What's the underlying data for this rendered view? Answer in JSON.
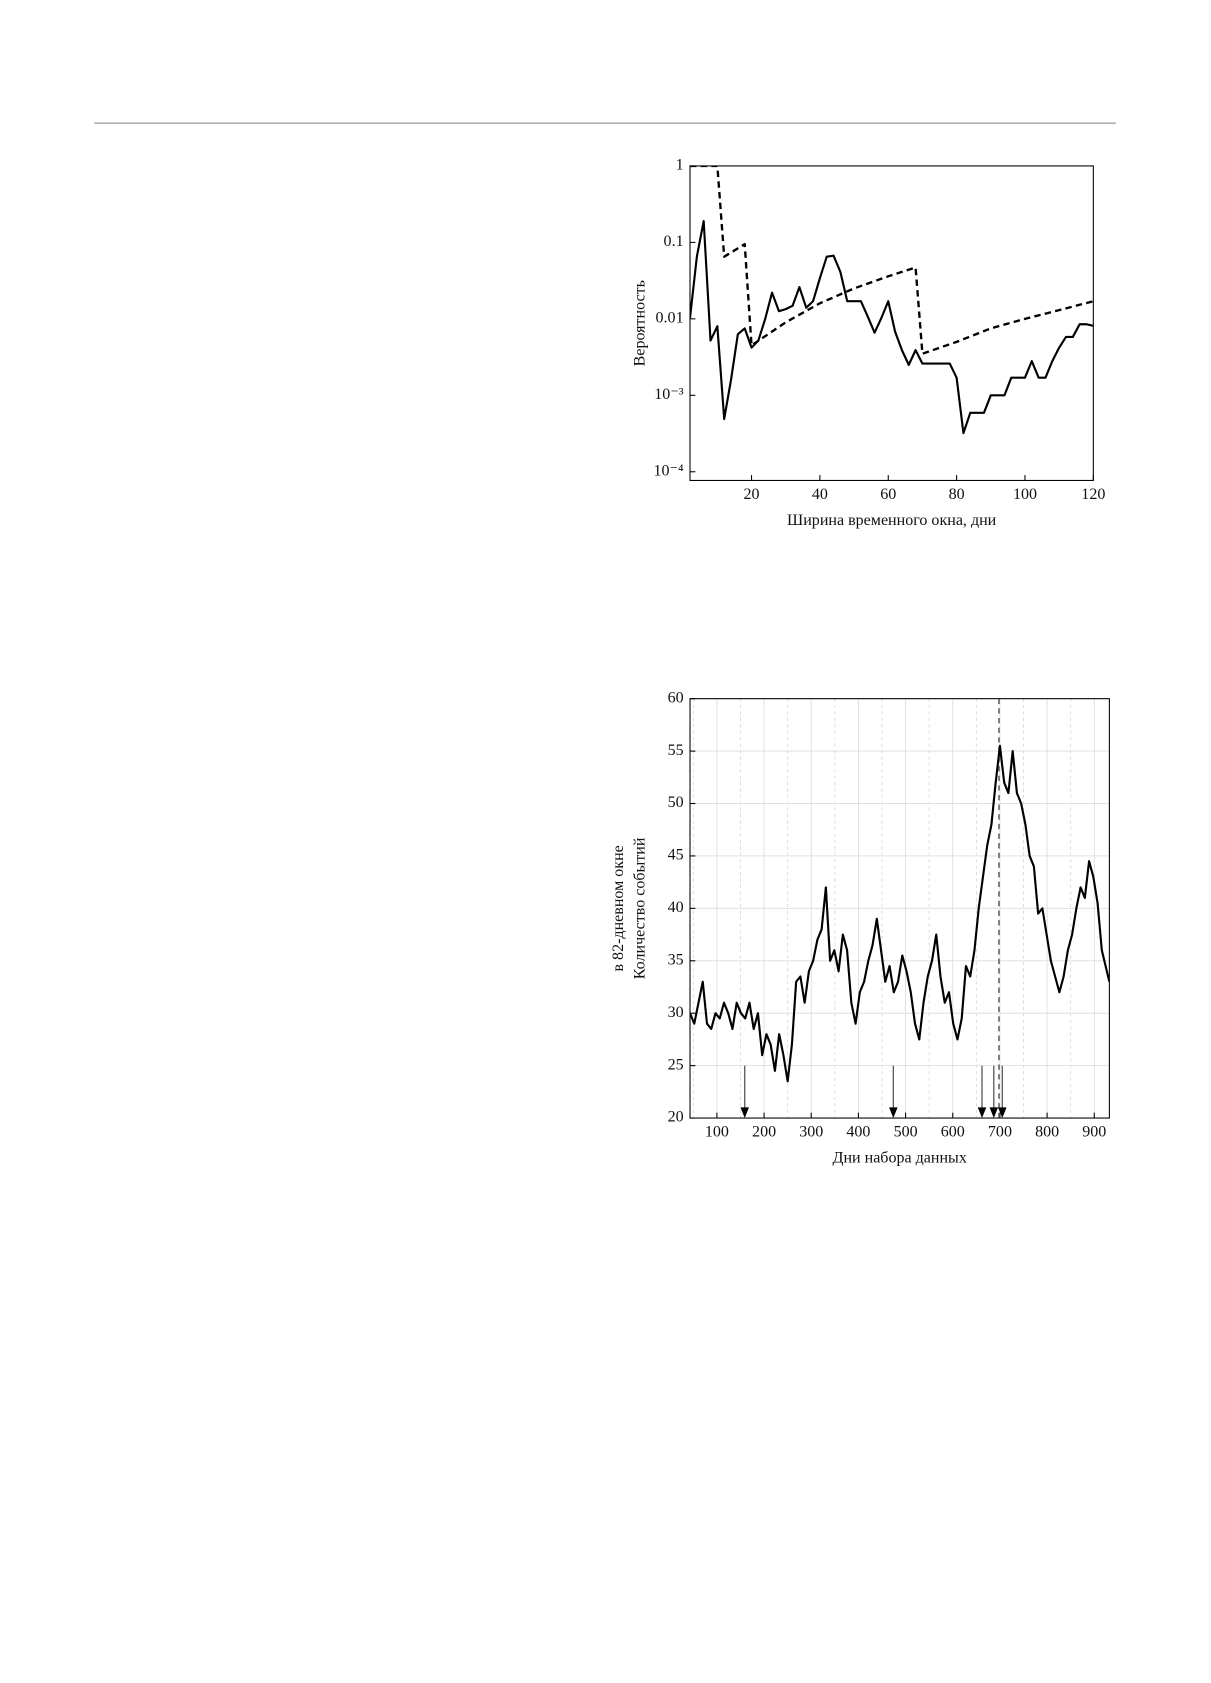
{
  "chart_data": [
    {
      "type": "line",
      "ylabel": "Вероятность",
      "xlabel": "Ширина временного окна, дни",
      "xlim": [
        2,
        120
      ],
      "ylim": [
        7.7e-05,
        1
      ],
      "ylog": true,
      "xticks": [
        20,
        40,
        60,
        80,
        100,
        120
      ],
      "yticks": [
        1,
        0.1,
        0.01,
        {
          "value": 0.001,
          "label": "10⁻³"
        },
        {
          "value": 0.0001,
          "label": "10⁻⁴"
        }
      ],
      "series": [
        {
          "color": "#000000",
          "style": "solid",
          "x": [
            2,
            4,
            6,
            8,
            10,
            12,
            14,
            16,
            18,
            20,
            22,
            24,
            26,
            28,
            30,
            32,
            34,
            36,
            38,
            40,
            42,
            44,
            46,
            48,
            50,
            52,
            54,
            56,
            58,
            60,
            62,
            64,
            66,
            68,
            70,
            72,
            78,
            80,
            82,
            84,
            86,
            88,
            90,
            92,
            94,
            96,
            98,
            100,
            102,
            104,
            106,
            108,
            110,
            112,
            114,
            116,
            118,
            120
          ],
          "values": [
            0.0103,
            0.065,
            0.19,
            0.0052,
            0.008,
            0.00049,
            0.0016,
            0.0063,
            0.0075,
            0.0042,
            0.0052,
            0.01,
            0.022,
            0.0126,
            0.0134,
            0.0148,
            0.026,
            0.014,
            0.017,
            0.034,
            0.065,
            0.067,
            0.041,
            0.017,
            0.017,
            0.017,
            0.0107,
            0.0066,
            0.0103,
            0.017,
            0.0068,
            0.0039,
            0.0025,
            0.0039,
            0.0026,
            0.0026,
            0.0026,
            0.0017,
            0.00032,
            0.00059,
            0.00059,
            0.00059,
            0.001,
            0.001,
            0.001,
            0.0017,
            0.0017,
            0.0017,
            0.0028,
            0.0017,
            0.0017,
            0.0028,
            0.0042,
            0.0058,
            0.0058,
            0.0085,
            0.0085,
            0.0081
          ]
        },
        {
          "color": "#000000",
          "style": "dashed",
          "x": [
            2,
            10,
            12,
            18,
            20,
            30,
            40,
            50,
            60,
            68,
            70,
            80,
            90,
            100,
            110,
            120
          ],
          "values": [
            1,
            1,
            0.065,
            0.095,
            0.0045,
            0.009,
            0.016,
            0.025,
            0.036,
            0.047,
            0.0035,
            0.005,
            0.0075,
            0.01,
            0.013,
            0.017
          ]
        }
      ]
    },
    {
      "type": "line",
      "ylabel": [
        "Количество событий",
        "в 82-дневном окне"
      ],
      "xlabel": "Дни набора данных",
      "xlim": [
        43,
        932
      ],
      "ylim": [
        20,
        60
      ],
      "xticks": [
        100,
        200,
        300,
        400,
        500,
        600,
        700,
        800,
        900
      ],
      "yticks": [
        20,
        25,
        30,
        35,
        40,
        45,
        50,
        55,
        60
      ],
      "xminorticks": [
        50,
        150,
        250,
        350,
        450,
        550,
        650,
        750,
        850
      ],
      "grid": true,
      "vline": {
        "x": 698,
        "color": "#666666"
      },
      "arrows": {
        "x": [
          159,
          474,
          662,
          687,
          705
        ],
        "from": 25,
        "to": 20
      },
      "series": [
        {
          "color": "#000000",
          "style": "solid",
          "x": [
            43,
            52,
            61,
            70,
            79,
            88,
            97,
            106,
            115,
            124,
            133,
            142,
            151,
            160,
            169,
            178,
            187,
            196,
            205,
            214,
            223,
            232,
            241,
            250,
            259,
            268,
            277,
            286,
            295,
            304,
            313,
            322,
            331,
            340,
            349,
            358,
            367,
            376,
            385,
            394,
            403,
            412,
            421,
            430,
            439,
            448,
            457,
            466,
            475,
            484,
            493,
            502,
            511,
            520,
            529,
            538,
            547,
            556,
            565,
            574,
            583,
            592,
            601,
            610,
            619,
            628,
            637,
            646,
            655,
            664,
            673,
            682,
            691,
            700,
            709,
            718,
            727,
            736,
            745,
            754,
            763,
            772,
            781,
            790,
            799,
            808,
            817,
            826,
            835,
            844,
            853,
            862,
            871,
            880,
            889,
            898,
            907,
            916,
            932
          ],
          "values": [
            30,
            29,
            31,
            33,
            29,
            28.5,
            30,
            29.5,
            31,
            30,
            28.5,
            31,
            30,
            29.5,
            31,
            28.5,
            30,
            26,
            28,
            27,
            24.5,
            28,
            26,
            23.5,
            27,
            33,
            33.5,
            31,
            34,
            35,
            37,
            38,
            42,
            35,
            36,
            34,
            37.5,
            36,
            31,
            29,
            32,
            33,
            35,
            36.5,
            39,
            36,
            33,
            34.5,
            32,
            33,
            35.5,
            34,
            32,
            29,
            27.5,
            31,
            33.5,
            35,
            37.5,
            33.5,
            31,
            32,
            29,
            27.5,
            29.5,
            34.5,
            33.5,
            36,
            40,
            43,
            46,
            48,
            52,
            55.5,
            52,
            51,
            55,
            51,
            50,
            48,
            45,
            44,
            39.5,
            40,
            37.5,
            35,
            33.5,
            32,
            33.5,
            36,
            37.5,
            40,
            42,
            41,
            44.5,
            43,
            40.5,
            36,
            33
          ]
        }
      ]
    }
  ]
}
